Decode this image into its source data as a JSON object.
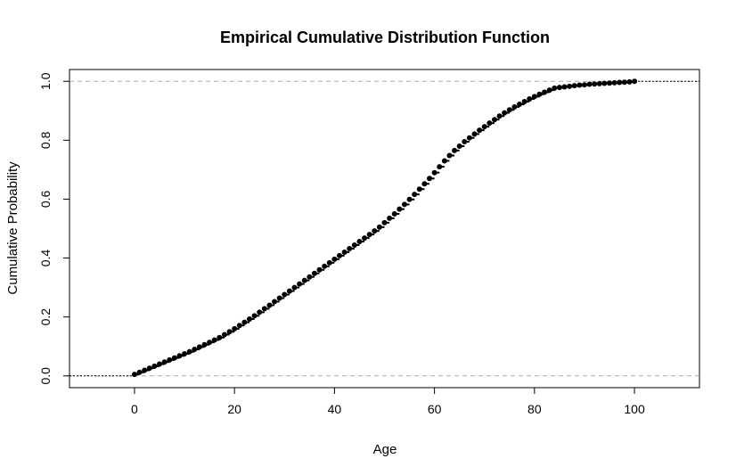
{
  "chart_data": {
    "type": "scatter",
    "subtype": "ecdf-step",
    "title": "Empirical Cumulative Distribution Function",
    "xlabel": "Age",
    "ylabel": "Cumulative Probability",
    "xlim": [
      -13,
      113
    ],
    "ylim": [
      -0.04,
      1.04
    ],
    "xticks": [
      0,
      20,
      40,
      60,
      80,
      100
    ],
    "yticks": [
      0.0,
      0.2,
      0.4,
      0.6,
      0.8,
      1.0
    ],
    "xtick_labels": [
      "0",
      "20",
      "40",
      "60",
      "80",
      "100"
    ],
    "ytick_labels": [
      "0.0",
      "0.2",
      "0.4",
      "0.6",
      "0.8",
      "1.0"
    ],
    "reference_lines": [
      0.0,
      1.0
    ],
    "grid": false,
    "point_color": "#000000",
    "refline_color": "#aaaaaa",
    "x": [
      0,
      1,
      2,
      3,
      4,
      5,
      6,
      7,
      8,
      9,
      10,
      11,
      12,
      13,
      14,
      15,
      16,
      17,
      18,
      19,
      20,
      21,
      22,
      23,
      24,
      25,
      26,
      27,
      28,
      29,
      30,
      31,
      32,
      33,
      34,
      35,
      36,
      37,
      38,
      39,
      40,
      41,
      42,
      43,
      44,
      45,
      46,
      47,
      48,
      49,
      50,
      51,
      52,
      53,
      54,
      55,
      56,
      57,
      58,
      59,
      60,
      61,
      62,
      63,
      64,
      65,
      66,
      67,
      68,
      69,
      70,
      71,
      72,
      73,
      74,
      75,
      76,
      77,
      78,
      79,
      80,
      81,
      82,
      83,
      84,
      85,
      86,
      87,
      88,
      89,
      90,
      91,
      92,
      93,
      94,
      95,
      96,
      97,
      98,
      99,
      100
    ],
    "y": [
      0.005,
      0.012,
      0.019,
      0.026,
      0.033,
      0.04,
      0.047,
      0.054,
      0.061,
      0.068,
      0.075,
      0.082,
      0.09,
      0.098,
      0.106,
      0.114,
      0.122,
      0.13,
      0.14,
      0.15,
      0.16,
      0.171,
      0.182,
      0.193,
      0.204,
      0.216,
      0.228,
      0.24,
      0.252,
      0.264,
      0.276,
      0.288,
      0.3,
      0.312,
      0.324,
      0.336,
      0.348,
      0.36,
      0.372,
      0.384,
      0.396,
      0.408,
      0.42,
      0.432,
      0.444,
      0.456,
      0.468,
      0.48,
      0.492,
      0.505,
      0.52,
      0.535,
      0.55,
      0.566,
      0.582,
      0.599,
      0.616,
      0.634,
      0.652,
      0.67,
      0.69,
      0.71,
      0.73,
      0.748,
      0.765,
      0.78,
      0.795,
      0.808,
      0.821,
      0.834,
      0.846,
      0.858,
      0.87,
      0.882,
      0.893,
      0.903,
      0.913,
      0.922,
      0.931,
      0.94,
      0.948,
      0.956,
      0.963,
      0.97,
      0.977,
      0.979,
      0.981,
      0.983,
      0.985,
      0.987,
      0.988,
      0.99,
      0.991,
      0.992,
      0.993,
      0.994,
      0.995,
      0.996,
      0.997,
      0.998,
      1.0
    ]
  }
}
